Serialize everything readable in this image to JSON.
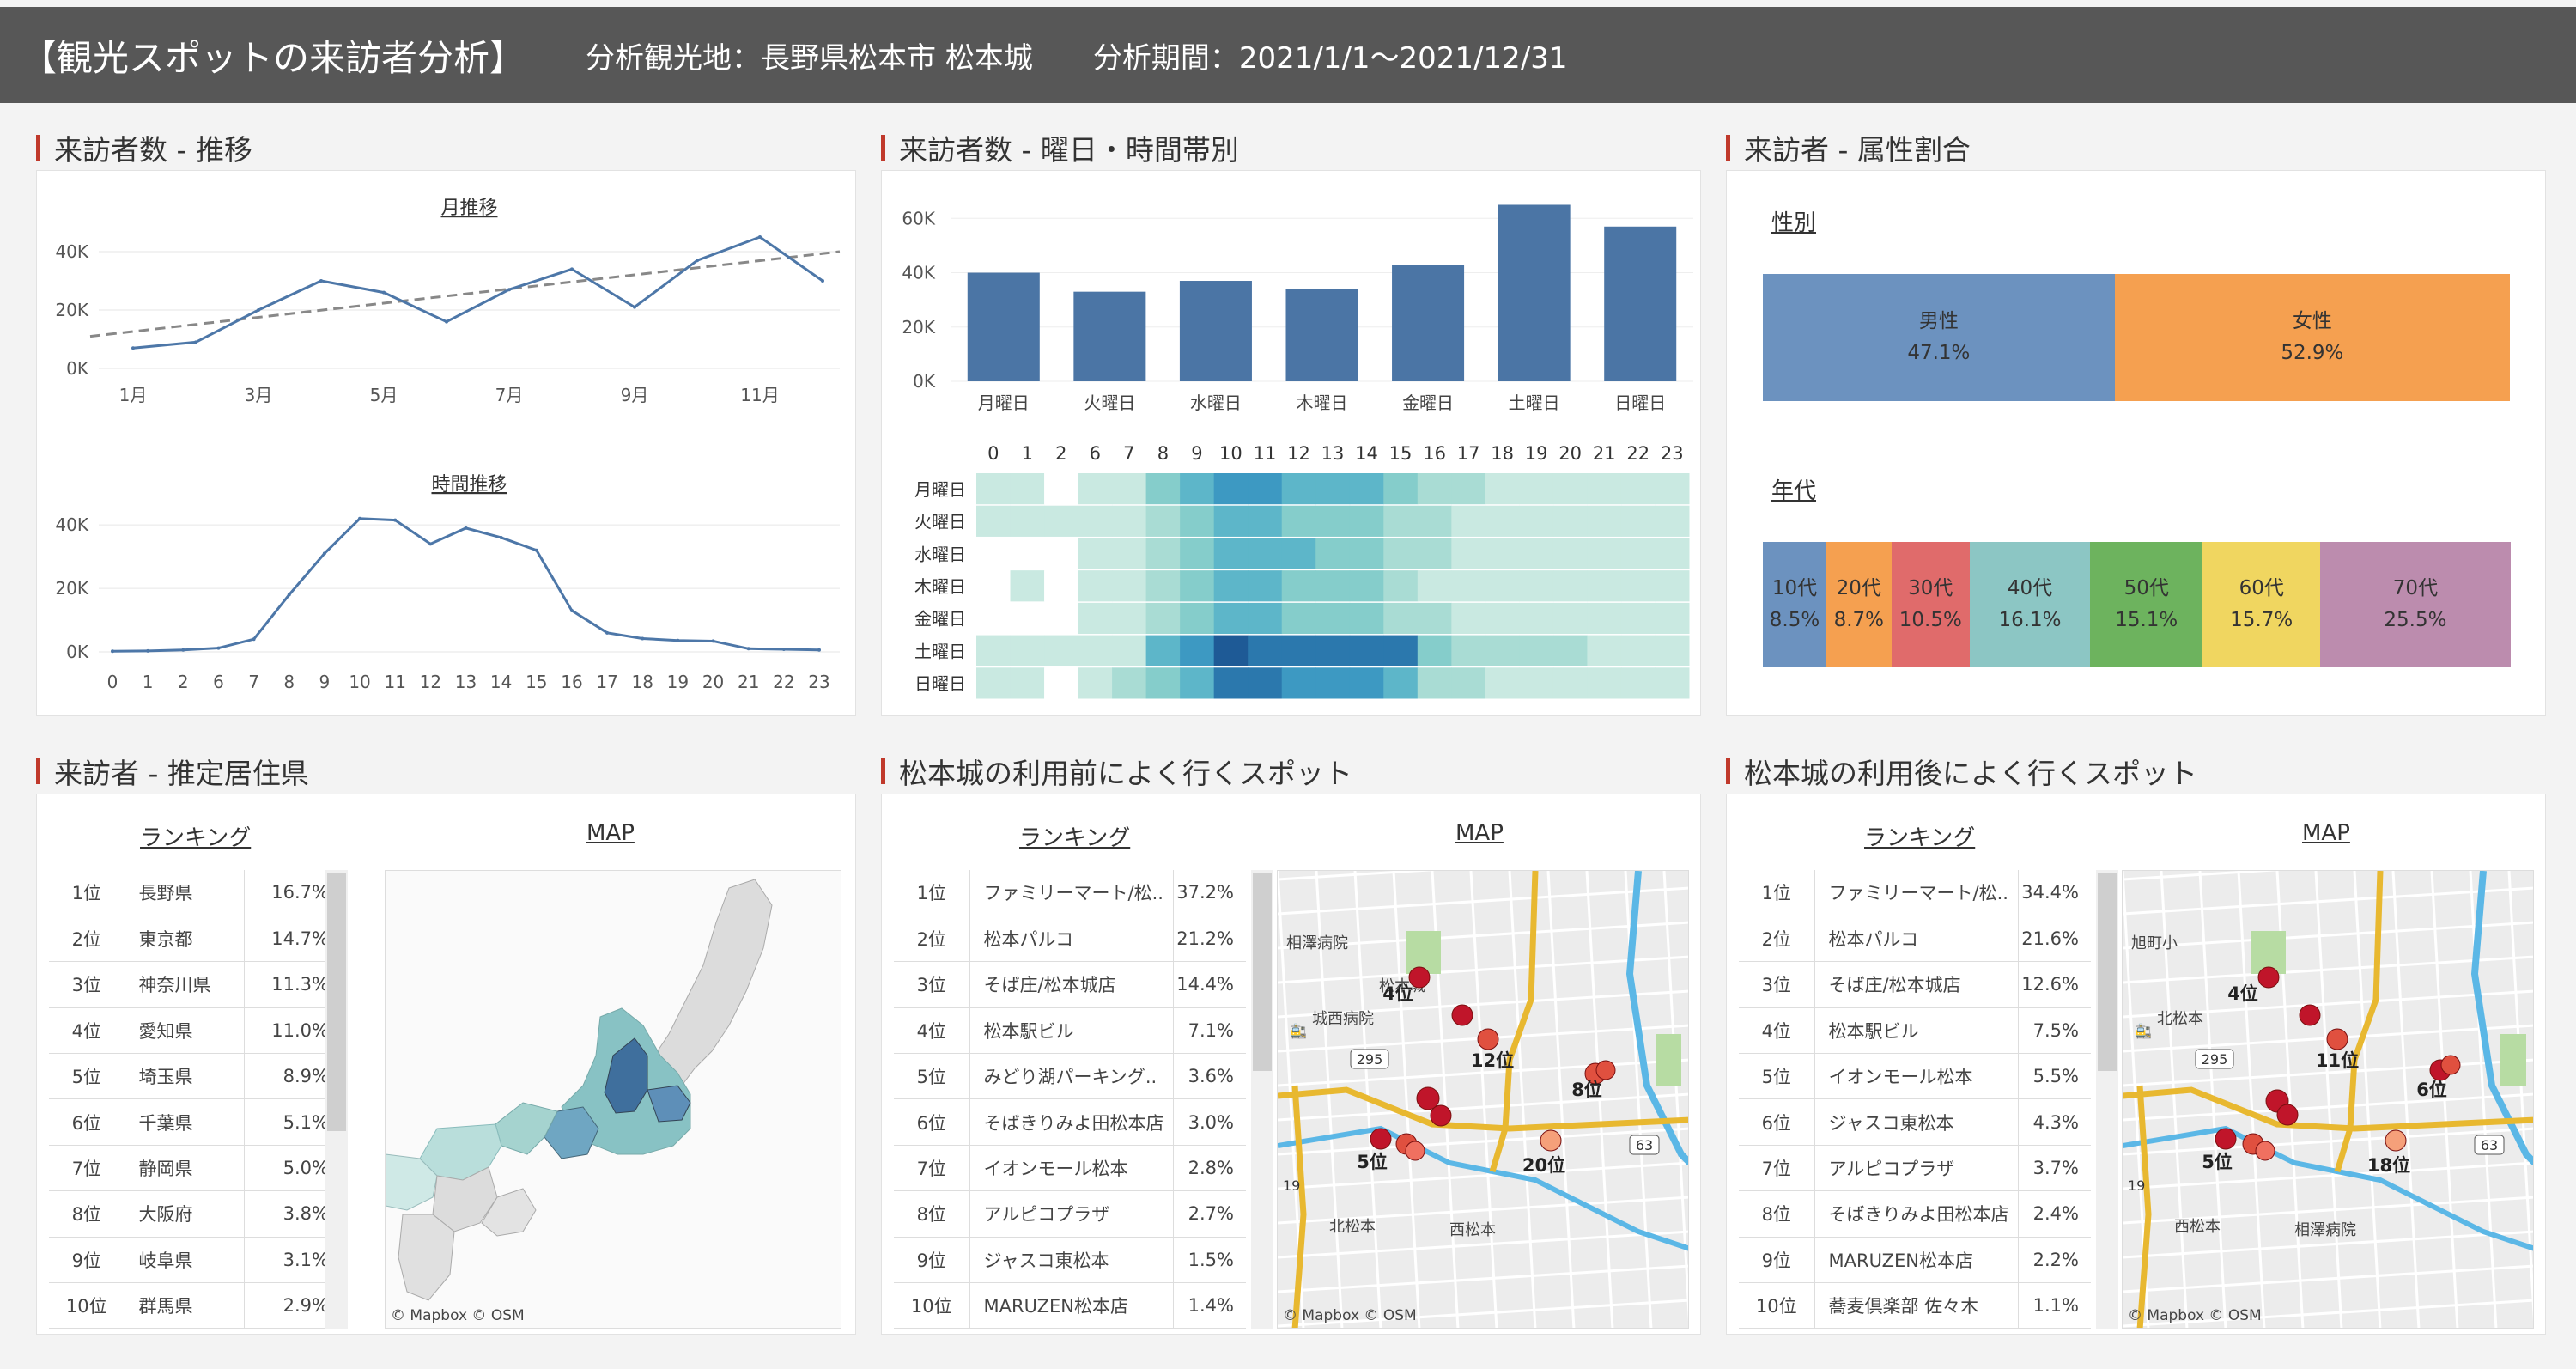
{
  "header": {
    "title": "【観光スポットの来訪者分析】",
    "location": "分析観光地：長野県松本市 松本城",
    "period": "分析期間：2021/1/1〜2021/12/31"
  },
  "sections": {
    "trend": "来訪者数 - 推移",
    "weekday_hour": "来訪者数 - 曜日・時間帯別",
    "attribute": "来訪者 - 属性割合",
    "residence": "来訪者 - 推定居住県",
    "before": "松本城の利用前によく行くスポット",
    "after": "松本城の利用後によく行くスポット"
  },
  "chart_data": [
    {
      "type": "line",
      "title": "月推移",
      "x": [
        1,
        2,
        3,
        4,
        5,
        6,
        7,
        8,
        9,
        10,
        11,
        12
      ],
      "x_tick_labels": [
        "1月",
        "3月",
        "5月",
        "7月",
        "9月",
        "11月"
      ],
      "y_ticks": [
        "0K",
        "20K",
        "40K"
      ],
      "ylim": [
        0,
        50000
      ],
      "series": [
        {
          "values": [
            7000,
            9000,
            20000,
            30000,
            26000,
            16000,
            27000,
            34000,
            21000,
            37000,
            45000,
            30000
          ]
        }
      ],
      "trendline": [
        11000,
        40000
      ]
    },
    {
      "type": "line",
      "title": "時間推移",
      "x": [
        "0",
        "1",
        "2",
        "6",
        "7",
        "8",
        "9",
        "10",
        "11",
        "12",
        "13",
        "14",
        "15",
        "16",
        "17",
        "18",
        "19",
        "20",
        "21",
        "22",
        "23"
      ],
      "y_ticks": [
        "0K",
        "20K",
        "40K"
      ],
      "ylim": [
        0,
        46000
      ],
      "series": [
        {
          "values": [
            200,
            300,
            600,
            1200,
            4000,
            18000,
            31000,
            42000,
            41500,
            34000,
            39000,
            36000,
            32000,
            13000,
            6000,
            4200,
            3600,
            3400,
            1000,
            800,
            600
          ]
        }
      ]
    },
    {
      "type": "bar",
      "categories": [
        "月曜日",
        "火曜日",
        "水曜日",
        "木曜日",
        "金曜日",
        "土曜日",
        "日曜日"
      ],
      "values": [
        40000,
        33000,
        37000,
        34000,
        43000,
        65000,
        57000
      ],
      "y_ticks": [
        "0K",
        "20K",
        "40K",
        "60K"
      ],
      "ylim": [
        0,
        68000
      ]
    },
    {
      "type": "heatmap",
      "columns": [
        "0",
        "1",
        "2",
        "6",
        "7",
        "8",
        "9",
        "10",
        "11",
        "12",
        "13",
        "14",
        "15",
        "16",
        "17",
        "18",
        "19",
        "20",
        "21",
        "22",
        "23"
      ],
      "rows": [
        "月曜日",
        "火曜日",
        "水曜日",
        "木曜日",
        "金曜日",
        "土曜日",
        "日曜日"
      ],
      "values": [
        [
          2,
          2,
          0,
          2,
          2,
          4,
          5,
          6,
          6,
          5,
          5,
          5,
          4,
          3,
          3,
          2,
          2,
          2,
          2,
          2,
          2
        ],
        [
          2,
          2,
          2,
          2,
          2,
          3,
          4,
          5,
          5,
          4,
          4,
          4,
          3,
          3,
          2,
          2,
          2,
          2,
          2,
          2,
          2
        ],
        [
          0,
          0,
          0,
          2,
          2,
          3,
          4,
          5,
          5,
          5,
          4,
          4,
          3,
          3,
          2,
          2,
          2,
          2,
          2,
          2,
          2
        ],
        [
          0,
          2,
          0,
          2,
          2,
          3,
          4,
          5,
          5,
          4,
          4,
          4,
          3,
          2,
          2,
          2,
          2,
          2,
          2,
          2,
          2
        ],
        [
          0,
          0,
          0,
          2,
          2,
          3,
          4,
          5,
          5,
          4,
          4,
          4,
          3,
          3,
          2,
          2,
          2,
          2,
          2,
          2,
          2
        ],
        [
          2,
          2,
          2,
          2,
          2,
          5,
          6,
          8,
          7,
          7,
          7,
          7,
          7,
          4,
          3,
          3,
          3,
          3,
          2,
          2,
          2
        ],
        [
          2,
          2,
          0,
          2,
          3,
          4,
          5,
          7,
          7,
          6,
          6,
          6,
          5,
          3,
          3,
          2,
          2,
          2,
          2,
          2,
          2
        ]
      ]
    },
    {
      "type": "bar",
      "title": "性別",
      "orientation": "stacked-horizontal",
      "categories": [
        "男性",
        "女性"
      ],
      "values": [
        47.1,
        52.9
      ],
      "labels": [
        "47.1%",
        "52.9%"
      ],
      "colors": [
        "#6c92bf",
        "#f5a050"
      ]
    },
    {
      "type": "bar",
      "title": "年代",
      "orientation": "stacked-horizontal",
      "categories": [
        "10代",
        "20代",
        "30代",
        "40代",
        "50代",
        "60代",
        "70代"
      ],
      "values": [
        8.5,
        8.7,
        10.5,
        16.1,
        15.1,
        15.7,
        25.5
      ],
      "labels": [
        "8.5%",
        "8.7%",
        "10.5%",
        "16.1%",
        "15.1%",
        "15.7%",
        "25.5%"
      ],
      "colors": [
        "#6c92bf",
        "#f5a050",
        "#e06b6b",
        "#8cc6c4",
        "#6db35e",
        "#f0d660",
        "#bc8cae"
      ]
    }
  ],
  "labels": {
    "monthly": "月推移",
    "hourly": "時間推移",
    "gender": "性別",
    "age": "年代",
    "ranking": "ランキング",
    "map": "MAP",
    "credit": "© Mapbox  © OSM"
  },
  "residence": [
    {
      "rank": "1位",
      "name": "長野県",
      "pct": "16.7%"
    },
    {
      "rank": "2位",
      "name": "東京都",
      "pct": "14.7%"
    },
    {
      "rank": "3位",
      "name": "神奈川県",
      "pct": "11.3%"
    },
    {
      "rank": "4位",
      "name": "愛知県",
      "pct": "11.0%"
    },
    {
      "rank": "5位",
      "name": "埼玉県",
      "pct": "8.9%"
    },
    {
      "rank": "6位",
      "name": "千葉県",
      "pct": "5.1%"
    },
    {
      "rank": "7位",
      "name": "静岡県",
      "pct": "5.0%"
    },
    {
      "rank": "8位",
      "name": "大阪府",
      "pct": "3.8%"
    },
    {
      "rank": "9位",
      "name": "岐阜県",
      "pct": "3.1%"
    },
    {
      "rank": "10位",
      "name": "群馬県",
      "pct": "2.9%"
    }
  ],
  "before": [
    {
      "rank": "1位",
      "name": "ファミリーマート/松..",
      "pct": "37.2%"
    },
    {
      "rank": "2位",
      "name": "松本パルコ",
      "pct": "21.2%"
    },
    {
      "rank": "3位",
      "name": "そば庄/松本城店",
      "pct": "14.4%"
    },
    {
      "rank": "4位",
      "name": "松本駅ビル",
      "pct": "7.1%"
    },
    {
      "rank": "5位",
      "name": "みどり湖パーキング..",
      "pct": "3.6%"
    },
    {
      "rank": "6位",
      "name": "そばきりみよ田松本店",
      "pct": "3.0%"
    },
    {
      "rank": "7位",
      "name": "イオンモール松本",
      "pct": "2.8%"
    },
    {
      "rank": "8位",
      "name": "アルピコプラザ",
      "pct": "2.7%"
    },
    {
      "rank": "9位",
      "name": "ジャスコ東松本",
      "pct": "1.5%"
    },
    {
      "rank": "10位",
      "name": "MARUZEN松本店",
      "pct": "1.4%"
    }
  ],
  "after": [
    {
      "rank": "1位",
      "name": "ファミリーマート/松..",
      "pct": "34.4%"
    },
    {
      "rank": "2位",
      "name": "松本パルコ",
      "pct": "21.6%"
    },
    {
      "rank": "3位",
      "name": "そば庄/松本城店",
      "pct": "12.6%"
    },
    {
      "rank": "4位",
      "name": "松本駅ビル",
      "pct": "7.5%"
    },
    {
      "rank": "5位",
      "name": "イオンモール松本",
      "pct": "5.5%"
    },
    {
      "rank": "6位",
      "name": "ジャスコ東松本",
      "pct": "4.3%"
    },
    {
      "rank": "7位",
      "name": "アルピコプラザ",
      "pct": "3.7%"
    },
    {
      "rank": "8位",
      "name": "そばきりみよ田松本店",
      "pct": "2.4%"
    },
    {
      "rank": "9位",
      "name": "MARUZEN松本店",
      "pct": "2.2%"
    },
    {
      "rank": "10位",
      "name": "蕎麦倶楽部 佐々木",
      "pct": "1.1%"
    }
  ],
  "map_before": {
    "places": [
      "城西病院",
      "北松本",
      "西松本",
      "相澤病院",
      "松本城"
    ],
    "route_numbers": [
      "295",
      "63",
      "19"
    ],
    "rank_labels": [
      "4位",
      "12位",
      "8位",
      "5位",
      "20位"
    ]
  },
  "map_after": {
    "places": [
      "北松本",
      "西松本",
      "相澤病院",
      "旭町小"
    ],
    "route_numbers": [
      "295",
      "63",
      "19"
    ],
    "rank_labels": [
      "4位",
      "11位",
      "6位",
      "5位",
      "18位"
    ]
  }
}
